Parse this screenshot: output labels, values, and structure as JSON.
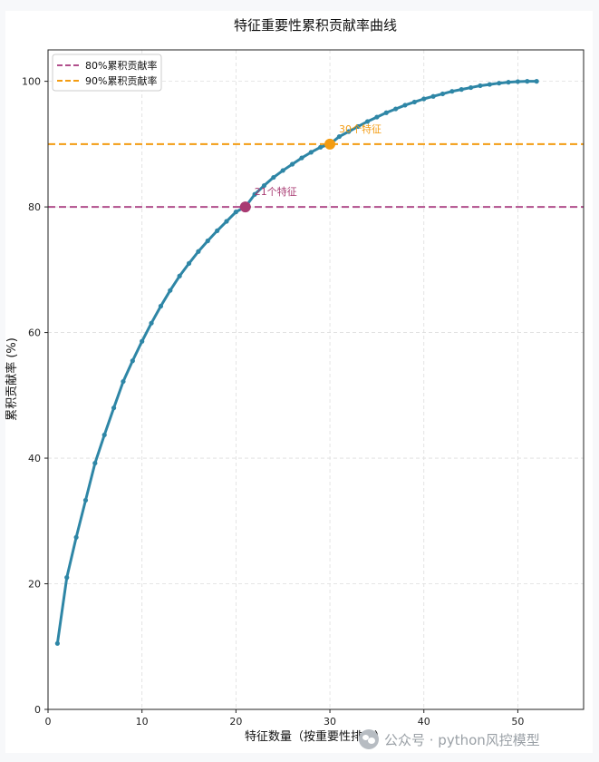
{
  "chart_data": {
    "type": "line",
    "title": "特征重要性累积贡献率曲线",
    "xlabel": "特征数量（按重要性排序）",
    "ylabel": "累积贡献率 (%)",
    "xlim": [
      0,
      57
    ],
    "ylim": [
      0,
      105
    ],
    "x_ticks": [
      "0",
      "10",
      "20",
      "30",
      "40",
      "50"
    ],
    "y_ticks": [
      "0",
      "20",
      "40",
      "60",
      "80",
      "100"
    ],
    "grid": true,
    "legend_position": "top-left",
    "series": [
      {
        "color": "#2e86a6",
        "x": [
          1,
          2,
          3,
          4,
          5,
          6,
          7,
          8,
          9,
          10,
          11,
          12,
          13,
          14,
          15,
          16,
          17,
          18,
          19,
          20,
          21,
          22,
          23,
          24,
          25,
          26,
          27,
          28,
          29,
          30,
          31,
          32,
          33,
          34,
          35,
          36,
          37,
          38,
          39,
          40,
          41,
          42,
          43,
          44,
          45,
          46,
          47,
          48,
          49,
          50,
          51,
          52
        ],
        "y": [
          10.5,
          21.0,
          27.4,
          33.3,
          39.2,
          43.7,
          48.0,
          52.2,
          55.5,
          58.6,
          61.5,
          64.2,
          66.7,
          69.0,
          71.0,
          72.9,
          74.6,
          76.2,
          77.7,
          79.2,
          80.0,
          82.0,
          83.4,
          84.7,
          85.8,
          86.8,
          87.8,
          88.7,
          89.5,
          90.0,
          91.2,
          92.0,
          92.8,
          93.6,
          94.3,
          95.0,
          95.6,
          96.2,
          96.7,
          97.2,
          97.6,
          98.0,
          98.4,
          98.7,
          99.0,
          99.3,
          99.5,
          99.7,
          99.85,
          99.95,
          100.0,
          100.0
        ]
      }
    ],
    "reference_lines": [
      {
        "label": "80%累积贡献率",
        "y": 80,
        "color": "#b14f8c"
      },
      {
        "label": "90%累积贡献率",
        "y": 90,
        "color": "#f39c12"
      }
    ],
    "highlight_points": [
      {
        "x": 21,
        "y": 80,
        "color": "#a83a72",
        "label": "21个特征"
      },
      {
        "x": 30,
        "y": 90,
        "color": "#f39c12",
        "label": "30个特征"
      }
    ]
  },
  "watermark": {
    "text": "公众号 · python风控模型"
  }
}
